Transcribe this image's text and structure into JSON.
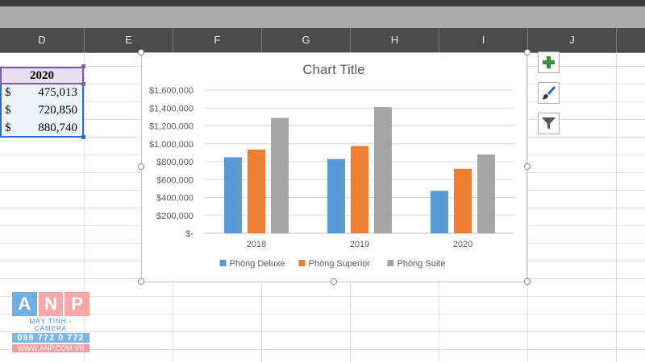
{
  "column_headers": [
    "D",
    "E",
    "F",
    "G",
    "H",
    "I",
    "J"
  ],
  "table": {
    "header": "2020",
    "rows": [
      {
        "symbol": "$",
        "value": "475,013"
      },
      {
        "symbol": "$",
        "value": "720,850"
      },
      {
        "symbol": "$",
        "value": "880,740"
      }
    ]
  },
  "chart_data": {
    "type": "bar",
    "title": "Chart Title",
    "categories": [
      "2018",
      "2019",
      "2020"
    ],
    "series": [
      {
        "name": "Phòng Deluxe",
        "color": "#5b9bd5",
        "values": [
          850000,
          830000,
          475013
        ]
      },
      {
        "name": "Phòng Superior",
        "color": "#ed7d31",
        "values": [
          935000,
          975000,
          720850
        ]
      },
      {
        "name": "Phòng Suite",
        "color": "#a5a5a5",
        "values": [
          1290000,
          1410000,
          880740
        ]
      }
    ],
    "ylim": [
      0,
      1600000
    ],
    "yticks": [
      {
        "value": 0,
        "label": "$-"
      },
      {
        "value": 200000,
        "label": "$200,000"
      },
      {
        "value": 400000,
        "label": "$400,000"
      },
      {
        "value": 600000,
        "label": "$600,000"
      },
      {
        "value": 800000,
        "label": "$800,000"
      },
      {
        "value": 1000000,
        "label": "$1,000,000"
      },
      {
        "value": 1200000,
        "label": "$1,200,000"
      },
      {
        "value": 1400000,
        "label": "$1,400,000"
      },
      {
        "value": 1600000,
        "label": "$1,600,000"
      }
    ],
    "grid": true,
    "legend_position": "bottom"
  },
  "side_buttons": [
    {
      "name": "chart-elements-button",
      "icon": "plus-icon"
    },
    {
      "name": "chart-styles-button",
      "icon": "brush-icon"
    },
    {
      "name": "chart-filters-button",
      "icon": "filter-icon"
    }
  ],
  "logo": {
    "letters": [
      "A",
      "N",
      "P"
    ],
    "line1": "MÁY TÍNH - CAMERA",
    "line2": "098 772 0 772",
    "line3": "WWW.ANP.COM.VN"
  }
}
